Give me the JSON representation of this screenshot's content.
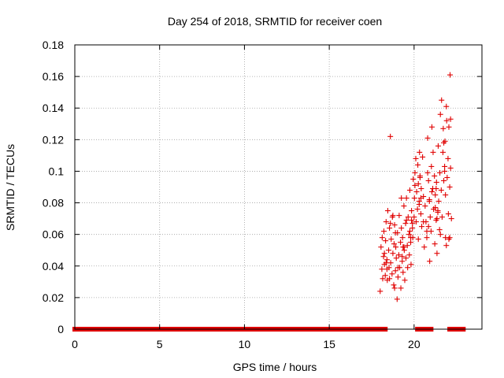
{
  "chart_data": {
    "type": "scatter",
    "title": "Day 254 of 2018, SRMTID for receiver coen",
    "xlabel": "GPS time / hours",
    "ylabel": "SRMTID / TECUs",
    "xlim": [
      0,
      24
    ],
    "ylim": [
      0,
      0.18
    ],
    "xticks": [
      0,
      5,
      10,
      15,
      20
    ],
    "yticks": [
      0,
      0.02,
      0.04,
      0.06,
      0.08,
      0.1,
      0.12,
      0.14,
      0.16,
      0.18
    ],
    "xtick_labels": [
      "0",
      "5",
      "10",
      "15",
      "20"
    ],
    "ytick_labels": [
      "0",
      "0.02",
      "0.04",
      "0.06",
      "0.08",
      "0.1",
      "0.12",
      "0.14",
      "0.16",
      "0.18"
    ],
    "grid": true,
    "marker": "+",
    "color": "#e00000",
    "zero_baseline_segments": [
      [
        0,
        18.3
      ],
      [
        20.2,
        20.4
      ],
      [
        20.6,
        21.0
      ],
      [
        22.1,
        22.9
      ]
    ],
    "series": [
      {
        "name": "SRMTID",
        "x": [
          18.0,
          18.05,
          18.1,
          18.12,
          18.15,
          18.2,
          18.22,
          18.25,
          18.3,
          18.32,
          18.35,
          18.4,
          18.42,
          18.45,
          18.5,
          18.52,
          18.55,
          18.6,
          18.62,
          18.65,
          18.7,
          18.72,
          18.75,
          18.8,
          18.82,
          18.85,
          18.9,
          18.92,
          18.95,
          19.0,
          19.02,
          19.05,
          19.1,
          19.12,
          19.15,
          19.2,
          19.22,
          19.25,
          19.3,
          19.32,
          19.35,
          19.4,
          19.42,
          19.45,
          19.5,
          19.52,
          19.55,
          19.6,
          19.62,
          19.65,
          19.7,
          19.72,
          19.75,
          19.8,
          19.82,
          19.85,
          19.9,
          19.92,
          19.95,
          20.0,
          20.02,
          20.05,
          20.1,
          20.12,
          20.15,
          20.2,
          20.22,
          20.25,
          20.3,
          20.32,
          20.35,
          20.4,
          20.42,
          20.45,
          20.5,
          20.55,
          20.6,
          20.65,
          20.7,
          20.75,
          20.8,
          20.85,
          20.9,
          20.92,
          20.95,
          21.0,
          21.02,
          21.05,
          21.1,
          21.12,
          21.15,
          21.2,
          21.22,
          21.25,
          21.3,
          21.32,
          21.35,
          21.4,
          21.42,
          21.45,
          21.5,
          21.52,
          21.55,
          21.6,
          21.62,
          21.65,
          21.7,
          21.72,
          21.75,
          21.8,
          21.82,
          21.85,
          21.9,
          21.92,
          21.95,
          22.0,
          22.02,
          22.05,
          22.1,
          22.12,
          22.15,
          22.2,
          18.6,
          19.3,
          19.8,
          20.3,
          20.8,
          21.3,
          21.8,
          22.1,
          18.4,
          18.9,
          19.4,
          19.9,
          20.4,
          20.9,
          21.4,
          21.9,
          18.25,
          18.75,
          19.25,
          19.75,
          20.25,
          20.75,
          21.25,
          21.75,
          22.05,
          18.55,
          19.05,
          19.55,
          20.05,
          20.55,
          21.05,
          21.55,
          22.15,
          18.35,
          18.85,
          19.35,
          19.85,
          20.35,
          20.85,
          21.35,
          21.85
        ],
        "y": [
          0.024,
          0.052,
          0.038,
          0.058,
          0.032,
          0.046,
          0.062,
          0.041,
          0.034,
          0.056,
          0.068,
          0.044,
          0.031,
          0.075,
          0.05,
          0.039,
          0.064,
          0.122,
          0.042,
          0.057,
          0.035,
          0.071,
          0.048,
          0.028,
          0.054,
          0.066,
          0.037,
          0.052,
          0.045,
          0.019,
          0.061,
          0.033,
          0.047,
          0.072,
          0.039,
          0.055,
          0.026,
          0.064,
          0.043,
          0.058,
          0.036,
          0.078,
          0.05,
          0.031,
          0.067,
          0.045,
          0.083,
          0.053,
          0.039,
          0.071,
          0.06,
          0.047,
          0.088,
          0.055,
          0.041,
          0.075,
          0.064,
          0.058,
          0.095,
          0.071,
          0.083,
          0.099,
          0.108,
          0.068,
          0.087,
          0.076,
          0.104,
          0.092,
          0.081,
          0.112,
          0.097,
          0.073,
          0.089,
          0.065,
          0.109,
          0.084,
          0.052,
          0.078,
          0.068,
          0.058,
          0.121,
          0.094,
          0.082,
          0.043,
          0.071,
          0.062,
          0.103,
          0.128,
          0.089,
          0.112,
          0.076,
          0.097,
          0.054,
          0.085,
          0.069,
          0.093,
          0.048,
          0.074,
          0.116,
          0.081,
          0.063,
          0.099,
          0.136,
          0.088,
          0.145,
          0.071,
          0.112,
          0.127,
          0.094,
          0.103,
          0.119,
          0.085,
          0.141,
          0.132,
          0.096,
          0.108,
          0.073,
          0.128,
          0.09,
          0.161,
          0.102,
          0.07,
          0.067,
          0.046,
          0.058,
          0.079,
          0.099,
          0.089,
          0.1,
          0.058,
          0.038,
          0.061,
          0.052,
          0.067,
          0.083,
          0.081,
          0.075,
          0.053,
          0.048,
          0.072,
          0.083,
          0.062,
          0.057,
          0.062,
          0.077,
          0.118,
          0.057,
          0.032,
          0.039,
          0.069,
          0.091,
          0.068,
          0.087,
          0.06,
          0.133,
          0.042,
          0.026,
          0.052,
          0.069,
          0.096,
          0.065,
          0.07,
          0.058
        ]
      }
    ]
  }
}
